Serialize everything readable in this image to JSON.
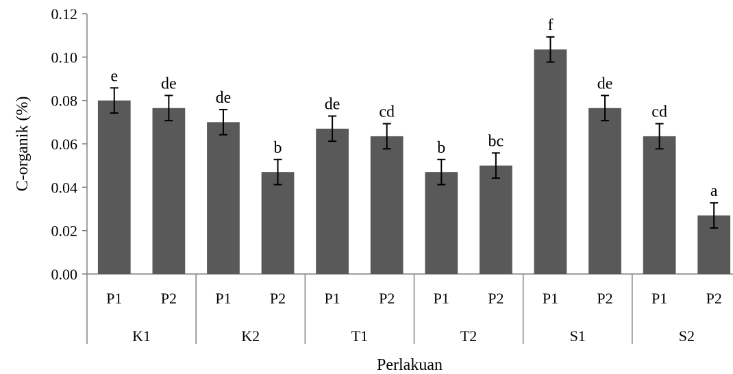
{
  "chart_data": {
    "type": "bar",
    "ylabel": "C-organik (%)",
    "xlabel": "Perlakuan",
    "ylim": [
      0,
      0.12
    ],
    "yticks": [
      "0.00",
      "0.02",
      "0.04",
      "0.06",
      "0.08",
      "0.10",
      "0.12"
    ],
    "grid": false,
    "bar_color": "#595959",
    "groups": [
      {
        "label": "K1",
        "categories": [
          "P1",
          "P2"
        ],
        "values": [
          0.08,
          0.0765
        ],
        "errors": [
          0.0058,
          0.0058
        ],
        "letters": [
          "e",
          "de"
        ]
      },
      {
        "label": "K2",
        "categories": [
          "P1",
          "P2"
        ],
        "values": [
          0.07,
          0.047
        ],
        "errors": [
          0.0058,
          0.0058
        ],
        "letters": [
          "de",
          "b"
        ]
      },
      {
        "label": "T1",
        "categories": [
          "P1",
          "P2"
        ],
        "values": [
          0.067,
          0.0635
        ],
        "errors": [
          0.0058,
          0.0058
        ],
        "letters": [
          "de",
          "cd"
        ]
      },
      {
        "label": "T2",
        "categories": [
          "P1",
          "P2"
        ],
        "values": [
          0.047,
          0.05
        ],
        "errors": [
          0.0058,
          0.0058
        ],
        "letters": [
          "b",
          "bc"
        ]
      },
      {
        "label": "S1",
        "categories": [
          "P1",
          "P2"
        ],
        "values": [
          0.1035,
          0.0765
        ],
        "errors": [
          0.0058,
          0.0058
        ],
        "letters": [
          "f",
          "de"
        ]
      },
      {
        "label": "S2",
        "categories": [
          "P1",
          "P2"
        ],
        "values": [
          0.0635,
          0.027
        ],
        "errors": [
          0.0058,
          0.0058
        ],
        "letters": [
          "cd",
          "a"
        ]
      }
    ]
  }
}
